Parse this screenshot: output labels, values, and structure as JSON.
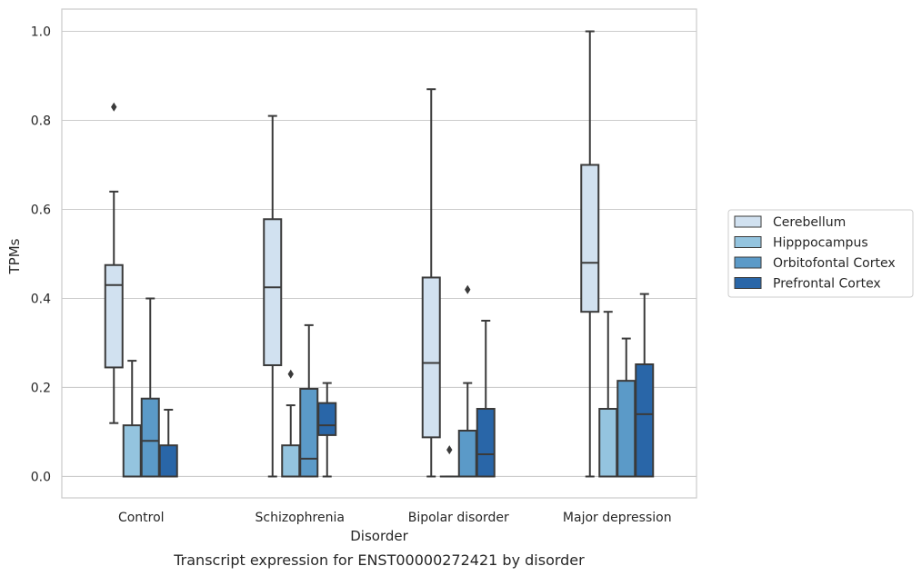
{
  "chart_data": {
    "type": "box",
    "title": "",
    "caption": "Transcript expression for ENST00000272421 by disorder",
    "xlabel": "Disorder",
    "ylabel": "TPMs",
    "ylim": [
      -0.048,
      1.05
    ],
    "yticks": [
      "0.0",
      "0.2",
      "0.4",
      "0.6",
      "0.8",
      "1.0"
    ],
    "grid": "horizontal",
    "legend_position": "right",
    "categories": [
      "Control",
      "Schizophrenia",
      "Bipolar disorder",
      "Major depression"
    ],
    "series": [
      {
        "name": "Cerebellum",
        "color": "#d1e1f0",
        "boxes": [
          {
            "whisker_low": 0.12,
            "q1": 0.245,
            "median": 0.43,
            "q3": 0.475,
            "whisker_high": 0.64,
            "outliers": [
              0.83
            ]
          },
          {
            "whisker_low": 0.0,
            "q1": 0.25,
            "median": 0.425,
            "q3": 0.578,
            "whisker_high": 0.81,
            "outliers": []
          },
          {
            "whisker_low": 0.0,
            "q1": 0.088,
            "median": 0.255,
            "q3": 0.447,
            "whisker_high": 0.87,
            "outliers": []
          },
          {
            "whisker_low": 0.0,
            "q1": 0.37,
            "median": 0.48,
            "q3": 0.7,
            "whisker_high": 1.0,
            "outliers": []
          }
        ]
      },
      {
        "name": "Hipppocampus",
        "color": "#94c4df",
        "boxes": [
          {
            "whisker_low": 0.0,
            "q1": 0.0,
            "median": 0.0,
            "q3": 0.115,
            "whisker_high": 0.26,
            "outliers": []
          },
          {
            "whisker_low": 0.0,
            "q1": 0.0,
            "median": 0.0,
            "q3": 0.07,
            "whisker_high": 0.16,
            "outliers": [
              0.23
            ]
          },
          {
            "whisker_low": 0.0,
            "q1": 0.0,
            "median": 0.0,
            "q3": 0.0,
            "whisker_high": 0.0,
            "outliers": [
              0.06
            ]
          },
          {
            "whisker_low": 0.0,
            "q1": 0.0,
            "median": 0.0,
            "q3": 0.152,
            "whisker_high": 0.37,
            "outliers": []
          }
        ]
      },
      {
        "name": "Orbitofontal Cortex",
        "color": "#5b9ac8",
        "boxes": [
          {
            "whisker_low": 0.0,
            "q1": 0.0,
            "median": 0.08,
            "q3": 0.175,
            "whisker_high": 0.4,
            "outliers": []
          },
          {
            "whisker_low": 0.0,
            "q1": 0.0,
            "median": 0.04,
            "q3": 0.197,
            "whisker_high": 0.34,
            "outliers": []
          },
          {
            "whisker_low": 0.0,
            "q1": 0.0,
            "median": 0.0,
            "q3": 0.103,
            "whisker_high": 0.21,
            "outliers": [
              0.42
            ]
          },
          {
            "whisker_low": 0.0,
            "q1": 0.0,
            "median": 0.0,
            "q3": 0.215,
            "whisker_high": 0.31,
            "outliers": []
          }
        ]
      },
      {
        "name": "Prefrontal Cortex",
        "color": "#2966a8",
        "boxes": [
          {
            "whisker_low": 0.0,
            "q1": 0.0,
            "median": 0.0,
            "q3": 0.07,
            "whisker_high": 0.15,
            "outliers": []
          },
          {
            "whisker_low": 0.0,
            "q1": 0.093,
            "median": 0.115,
            "q3": 0.165,
            "whisker_high": 0.21,
            "outliers": []
          },
          {
            "whisker_low": 0.0,
            "q1": 0.0,
            "median": 0.05,
            "q3": 0.152,
            "whisker_high": 0.35,
            "outliers": []
          },
          {
            "whisker_low": 0.0,
            "q1": 0.0,
            "median": 0.14,
            "q3": 0.252,
            "whisker_high": 0.41,
            "outliers": []
          }
        ]
      }
    ]
  }
}
